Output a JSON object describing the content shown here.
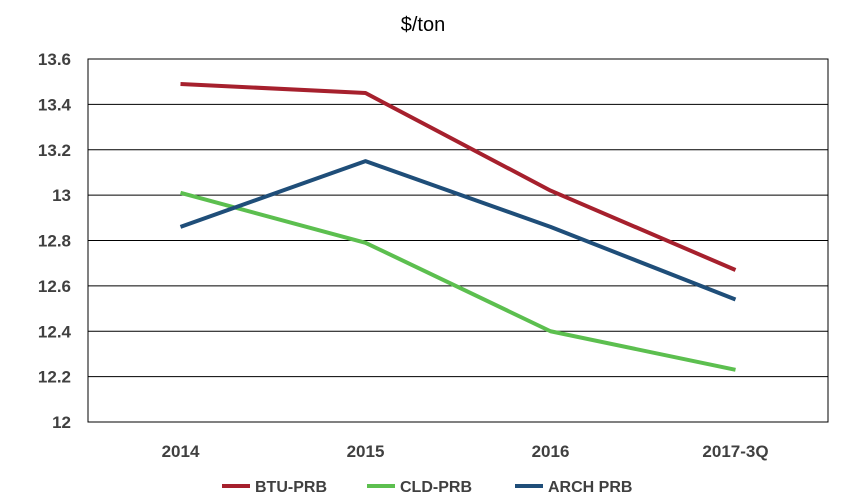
{
  "chart_data": {
    "type": "line",
    "title": "$/ton",
    "xlabel": "",
    "ylabel": "",
    "categories": [
      "2014",
      "2015",
      "2016",
      "2017-3Q"
    ],
    "ylim": [
      12,
      13.6
    ],
    "yticks": [
      12,
      12.2,
      12.4,
      12.6,
      12.8,
      13,
      13.2,
      13.4,
      13.6
    ],
    "ytick_labels": [
      "12",
      "12.2",
      "12.4",
      "12.6",
      "12.8",
      "13",
      "13.2",
      "13.4",
      "13.6"
    ],
    "grid": true,
    "legend_position": "bottom",
    "series": [
      {
        "name": "BTU-PRB",
        "color": "#A6202D",
        "values": [
          13.49,
          13.45,
          13.02,
          12.67
        ]
      },
      {
        "name": "CLD-PRB",
        "color": "#5CBF4F",
        "values": [
          13.01,
          12.79,
          12.4,
          12.23
        ]
      },
      {
        "name": "ARCH PRB",
        "color": "#1F4E79",
        "values": [
          12.86,
          13.15,
          12.86,
          12.54
        ]
      }
    ]
  }
}
